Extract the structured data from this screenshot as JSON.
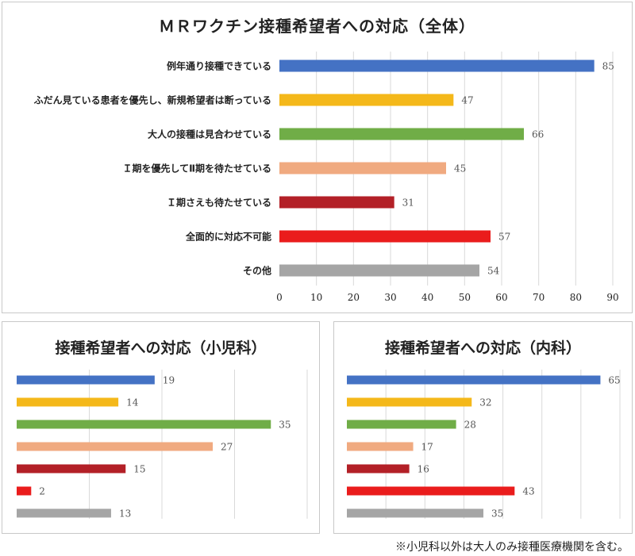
{
  "chart_data": [
    {
      "type": "bar",
      "orientation": "horizontal",
      "title": "ＭＲワクチン接種希望者への対応（全体）",
      "categories": [
        "例年通り接種できている",
        "ふだん見ている患者を優先し、新規希望者は断っている",
        "大人の接種は見合わせている",
        "Ｉ期を優先してⅡ期を待たせている",
        "Ｉ期さえも待たせている",
        "全面的に対応不可能",
        "その他"
      ],
      "values": [
        85,
        47,
        66,
        45,
        31,
        57,
        54
      ],
      "colors": [
        "#4472c4",
        "#f4b81a",
        "#70ad47",
        "#f0aa80",
        "#b32027",
        "#ea1c1c",
        "#a5a5a5"
      ],
      "xlim": [
        0,
        90
      ],
      "xticks": [
        "0",
        "10",
        "20",
        "30",
        "40",
        "50",
        "60",
        "70",
        "80",
        "90"
      ],
      "grid": true
    },
    {
      "type": "bar",
      "orientation": "horizontal",
      "title": "接種希望者への対応（小児科）",
      "values": [
        19,
        14,
        35,
        27,
        15,
        2,
        13
      ],
      "colors": [
        "#4472c4",
        "#f4b81a",
        "#70ad47",
        "#f0aa80",
        "#b32027",
        "#ea1c1c",
        "#a5a5a5"
      ],
      "xlim": [
        0,
        40
      ],
      "grid": true
    },
    {
      "type": "bar",
      "orientation": "horizontal",
      "title": "接種希望者への対応（内科）",
      "values": [
        65,
        32,
        28,
        17,
        16,
        43,
        35
      ],
      "colors": [
        "#4472c4",
        "#f4b81a",
        "#70ad47",
        "#f0aa80",
        "#b32027",
        "#ea1c1c",
        "#a5a5a5"
      ],
      "xlim": [
        0,
        70
      ],
      "grid": true
    }
  ],
  "footnote": "※小児科以外は大人のみ接種医療機関を含む。"
}
